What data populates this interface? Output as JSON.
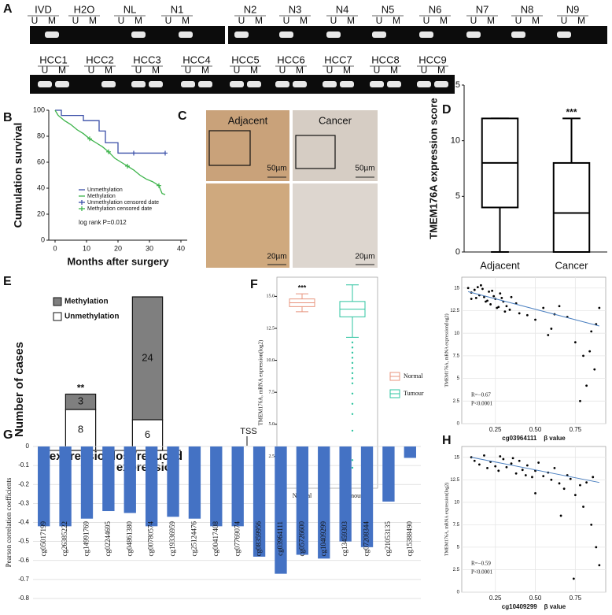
{
  "panel_labels": [
    "A",
    "B",
    "C",
    "D",
    "E",
    "F",
    "G",
    "H"
  ],
  "gel": {
    "lane_labels": [
      "U",
      "M"
    ],
    "row1": [
      "IVD",
      "H2O",
      "NL",
      "N1",
      "N2",
      "N3",
      "N4",
      "N5",
      "N6",
      "N7",
      "N8",
      "N9"
    ],
    "row2": [
      "HCC1",
      "HCC2",
      "HCC3",
      "HCC4",
      "HCC5",
      "HCC6",
      "HCC7",
      "HCC8",
      "HCC9"
    ]
  },
  "ihc": {
    "columns": [
      "Adjacent",
      "Cancer"
    ],
    "scale_bars": [
      "50µm",
      "20µm"
    ]
  },
  "chart_data": [
    {
      "type": "line",
      "y_label": "Cumulation  survival",
      "x_label": "Months after surgery",
      "xlim": [
        -2,
        42
      ],
      "xticks": [
        0,
        10,
        20,
        30,
        40
      ],
      "ylim": [
        0,
        100
      ],
      "yticks": [
        0,
        20,
        40,
        60,
        80,
        100
      ],
      "series": [
        {
          "name": "Unmethylation",
          "color": "#3a4fa8",
          "x": [
            0,
            2,
            2,
            9,
            9,
            14,
            14,
            16,
            16,
            20,
            20,
            35
          ],
          "values": [
            100,
            100,
            96,
            96,
            92,
            92,
            84,
            84,
            75,
            75,
            67,
            67
          ]
        },
        {
          "name": "Methylation",
          "color": "#3cb34a",
          "x": [
            0,
            1,
            2,
            3,
            5,
            7,
            9,
            11,
            13,
            15,
            17,
            19,
            21,
            23,
            25,
            27,
            29,
            31,
            33,
            34,
            35
          ],
          "values": [
            100,
            96,
            94,
            92,
            89,
            85,
            82,
            78,
            75,
            72,
            68,
            63,
            60,
            57,
            54,
            50,
            47,
            45,
            42,
            36,
            35
          ]
        }
      ],
      "censored": [
        {
          "name": "Unmethylation censored date",
          "color": "#3a4fa8",
          "x": [
            25,
            35
          ],
          "values": [
            67,
            67
          ]
        },
        {
          "name": "Methylation censored date",
          "color": "#3cb34a",
          "x": [
            11,
            17,
            23,
            33
          ],
          "values": [
            78,
            68,
            57,
            42
          ]
        }
      ],
      "annotation": "log rank P=0.012"
    },
    {
      "type": "box",
      "y_label": "TMEM176A expression score",
      "categories": [
        "Adjacent",
        "Cancer"
      ],
      "color": "#000000",
      "boxes": [
        {
          "min": 0,
          "q1": 4,
          "median": 8,
          "q3": 12,
          "max": 12
        },
        {
          "min": 0,
          "q1": 0,
          "median": 3.5,
          "q3": 8,
          "max": 12
        }
      ],
      "ylim": [
        0,
        15
      ],
      "yticks": [
        0,
        5,
        10,
        15
      ],
      "annotation": "***"
    },
    {
      "type": "stacked_bar",
      "y_label": "Number of cases",
      "categories": [
        "expression",
        "lost/reduced expression"
      ],
      "series": [
        {
          "name": "Unmethylation",
          "color": "#ffffff",
          "values": [
            8,
            6
          ]
        },
        {
          "name": "Methylation",
          "color": "#7f7f7f",
          "values": [
            3,
            24
          ]
        }
      ],
      "ylim": [
        0,
        30
      ],
      "annotation": "**"
    },
    {
      "type": "box",
      "y_label": "TMEM176A, mRNA expression(log2)",
      "categories": [
        "Normal",
        "Tumour"
      ],
      "colors": [
        "#e8947e",
        "#2ec4a0"
      ],
      "legend": "right",
      "boxes": [
        {
          "min": 13.8,
          "q1": 14.2,
          "median": 14.5,
          "q3": 14.8,
          "max": 15.2
        },
        {
          "min": 11.8,
          "q1": 13.4,
          "median": 14.0,
          "q3": 14.6,
          "max": 15.9
        }
      ],
      "outliers": [
        [],
        [
          11.4,
          11,
          10.6,
          10.2,
          9.8,
          9.4,
          9,
          8.6,
          8.2,
          7.4,
          6.6,
          5.8,
          4.5,
          2.2,
          1.6
        ]
      ],
      "ylim": [
        0,
        16.5
      ],
      "yticks": [
        2.5,
        {
          "value": 5,
          "label": "5.0"
        },
        7.5,
        {
          "value": 10,
          "label": "10.0"
        },
        12.5,
        {
          "value": 15,
          "label": "15.0"
        }
      ],
      "annotation": "***"
    },
    {
      "type": "bar",
      "y_label": "Pearson correlation coefficients",
      "color": "#4472c4",
      "annotation": "TSS",
      "categories": [
        "cg05017199",
        "cg26385222",
        "cg14991769",
        "cg02244695",
        "cg04861380",
        "cg00780574",
        "cg19336959",
        "cg25124476",
        "cg00417408",
        "cg07769074",
        "cg08359956",
        "cg03964111",
        "cg05726600",
        "cg10409299",
        "cg13459303",
        "cg07208344",
        "cg21053135",
        "cg15388490"
      ],
      "values": [
        -0.42,
        -0.42,
        -0.38,
        -0.34,
        -0.35,
        -0.42,
        -0.37,
        -0.38,
        -0.42,
        -0.42,
        -0.58,
        -0.67,
        -0.57,
        -0.59,
        -0.5,
        -0.53,
        -0.29,
        -0.06
      ],
      "ylim": [
        -0.8,
        0
      ],
      "yticks": [
        0,
        -0.1,
        -0.2,
        -0.3,
        -0.4,
        -0.5,
        -0.6,
        -0.7,
        -0.8
      ],
      "grid": true
    },
    {
      "type": "scatter",
      "y_label": "TMEM176A, mRNA expression(log2)",
      "x_label": "cg03964111    β value",
      "color": "#000000",
      "trend_color": "#4a7fc0",
      "x": [
        0.08,
        0.1,
        0.12,
        0.13,
        0.15,
        0.16,
        0.18,
        0.2,
        0.21,
        0.22,
        0.24,
        0.25,
        0.27,
        0.28,
        0.3,
        0.32,
        0.34,
        0.35,
        0.38,
        0.4,
        0.1,
        0.14,
        0.17,
        0.19,
        0.23,
        0.26,
        0.29,
        0.31,
        0.45,
        0.5,
        0.55,
        0.6,
        0.65,
        0.7,
        0.75,
        0.8,
        0.82,
        0.85,
        0.87,
        0.9,
        0.78,
        0.84,
        0.88,
        0.62,
        0.58
      ],
      "values": [
        15,
        14.5,
        14.8,
        13.9,
        14.2,
        15.3,
        14,
        13.6,
        14.6,
        13.2,
        14.1,
        13.8,
        12.9,
        14.4,
        13.5,
        13,
        12.6,
        14,
        13.3,
        12.2,
        13.8,
        15.1,
        14.9,
        13.5,
        14.7,
        12.8,
        13.9,
        12.4,
        12,
        11.5,
        12.8,
        10.5,
        13,
        11.8,
        9,
        7.5,
        4.2,
        10.2,
        6,
        12.8,
        2.5,
        8,
        11,
        12.1,
        9.8
      ],
      "trend": {
        "x": [
          0.08,
          0.9
        ],
        "values": [
          14.6,
          10.8
        ]
      },
      "annotations": [
        "R=−0.67",
        "P<0.0001"
      ],
      "xlim": [
        0.04,
        0.94
      ],
      "xticks": [
        0.25,
        {
          "value": 0.5,
          "label": "0.50"
        },
        0.75
      ],
      "ylim": [
        0,
        16.2
      ],
      "yticks": [
        0,
        2.5,
        5,
        7.5,
        10,
        12.5,
        15
      ],
      "grid": true
    },
    {
      "type": "scatter",
      "y_label": "TMEM176A, mRNA expression(log2)",
      "x_label": "cg10409299    β value",
      "color": "#000000",
      "trend_color": "#4a7fc0",
      "x": [
        0.1,
        0.12,
        0.15,
        0.18,
        0.2,
        0.22,
        0.25,
        0.27,
        0.3,
        0.32,
        0.35,
        0.38,
        0.4,
        0.42,
        0.45,
        0.48,
        0.5,
        0.52,
        0.55,
        0.58,
        0.6,
        0.62,
        0.65,
        0.68,
        0.7,
        0.72,
        0.75,
        0.78,
        0.8,
        0.82,
        0.85,
        0.88,
        0.9,
        0.28,
        0.36,
        0.44,
        0.5,
        0.66,
        0.74,
        0.86
      ],
      "values": [
        15,
        14.6,
        14.2,
        15.2,
        13.8,
        14.5,
        14,
        13.5,
        14.8,
        13.9,
        14.3,
        13.2,
        14.6,
        13.6,
        14.1,
        12.8,
        13.5,
        14.4,
        12.9,
        13.3,
        12.5,
        13.8,
        12.1,
        11.5,
        13,
        12.6,
        10.8,
        11.9,
        9.5,
        12.2,
        7.5,
        5,
        3,
        15.1,
        14.9,
        13,
        11,
        8.5,
        1.5,
        12.8
      ],
      "trend": {
        "x": [
          0.1,
          0.9
        ],
        "values": [
          15,
          12.2
        ]
      },
      "annotations": [
        "R=−0.59",
        "P<0.0001"
      ],
      "xlim": [
        0.04,
        0.94
      ],
      "xticks": [
        0.25,
        {
          "value": 0.5,
          "label": "0.50"
        },
        0.75
      ],
      "ylim": [
        0,
        16.2
      ],
      "yticks": [
        0,
        2.5,
        5,
        7.5,
        10,
        12.5,
        15
      ],
      "grid": true
    }
  ]
}
